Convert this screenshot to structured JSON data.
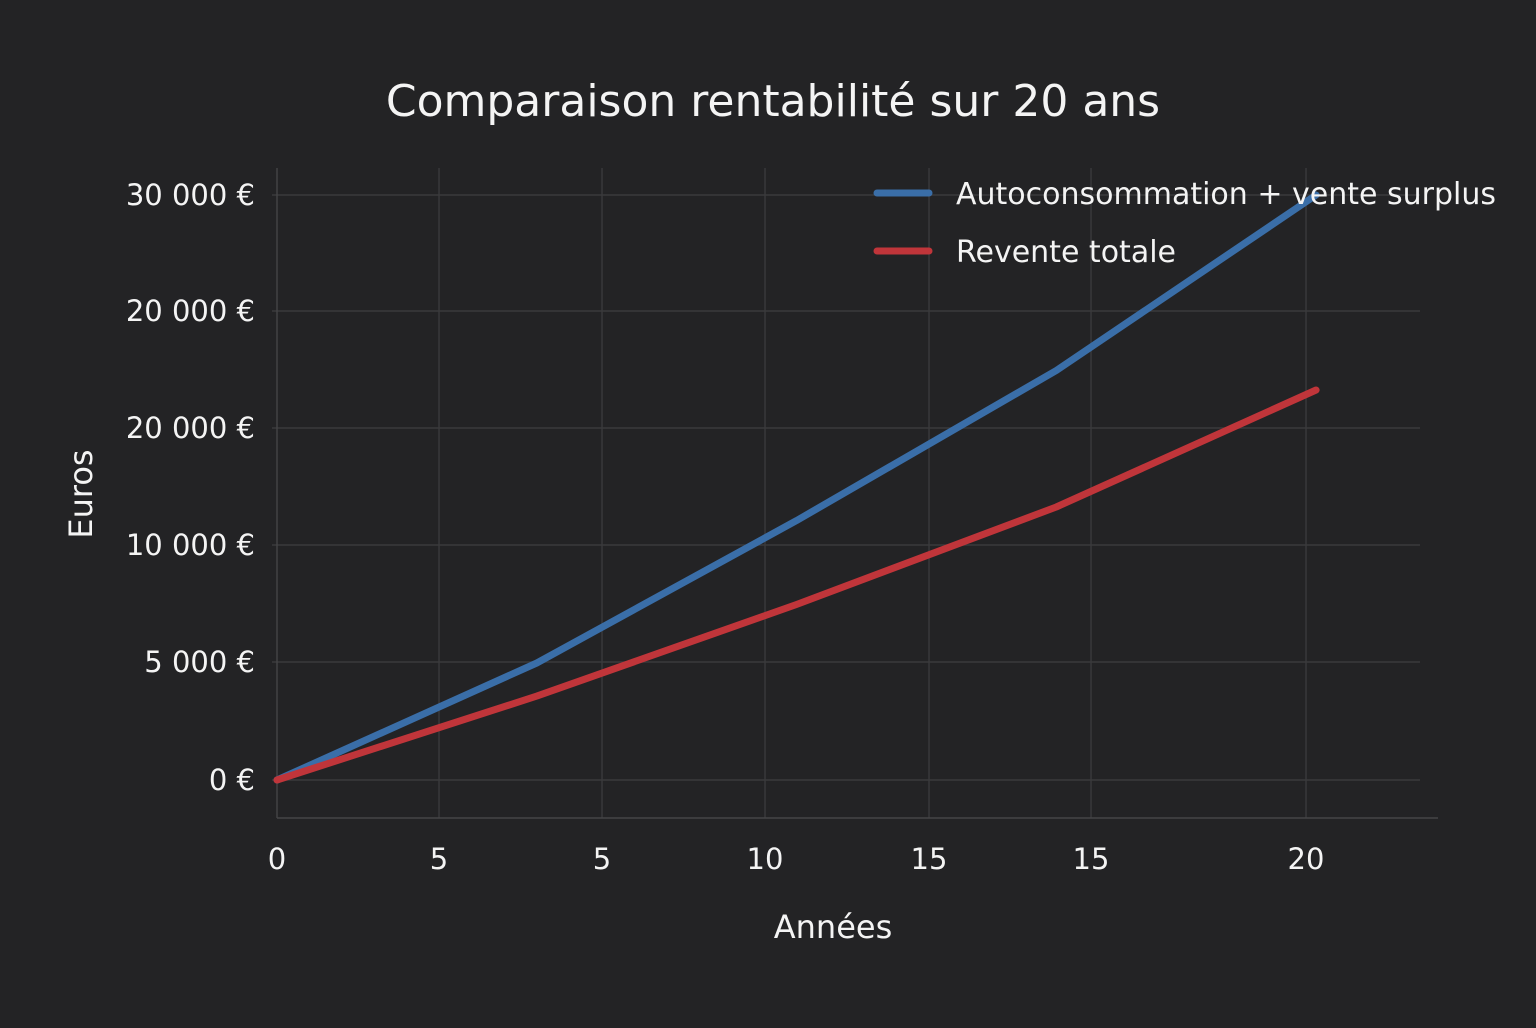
{
  "chart_data": {
    "type": "line",
    "title": "Comparaison rentabilité sur 20 ans",
    "xlabel": "Années",
    "ylabel": "Euros",
    "x_tick_labels": [
      "0",
      "5",
      "5",
      "10",
      "15",
      "15",
      "20"
    ],
    "y_tick_labels": [
      "0 €",
      "5 000 €",
      "10 000 €",
      "20 000 €",
      "20 000 €",
      "30 000 €"
    ],
    "x": [
      0,
      5,
      10,
      15,
      20
    ],
    "series": [
      {
        "name": "Autoconsommation + vente surplus",
        "color": "#3a6ea8",
        "values": [
          0,
          6000,
          13300,
          21000,
          30000
        ]
      },
      {
        "name": "Revente totale",
        "color": "#c0353a",
        "values": [
          0,
          4300,
          9000,
          14000,
          20000
        ]
      }
    ],
    "xlim": [
      0,
      22
    ],
    "ylim": [
      -1600,
      30000
    ],
    "grid": true,
    "legend_position": "top-right"
  }
}
